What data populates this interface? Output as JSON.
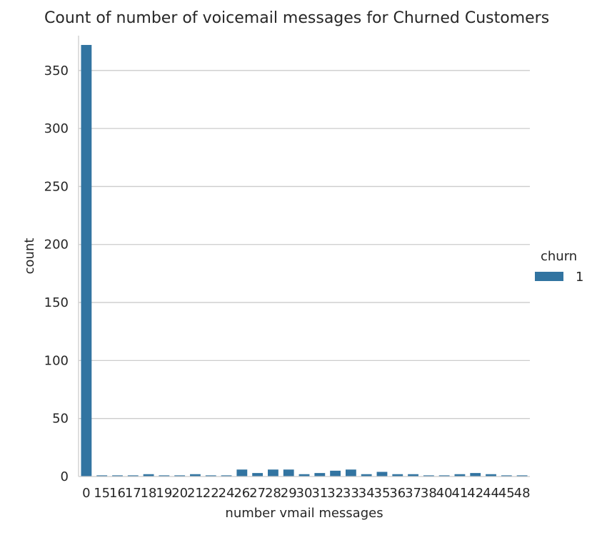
{
  "chart_data": {
    "type": "bar",
    "title": "Count of number of voicemail messages for Churned Customers",
    "xlabel": "number vmail messages",
    "ylabel": "count",
    "categories": [
      "0",
      "15",
      "16",
      "17",
      "18",
      "19",
      "20",
      "21",
      "22",
      "24",
      "26",
      "27",
      "28",
      "29",
      "30",
      "31",
      "32",
      "33",
      "34",
      "35",
      "36",
      "37",
      "38",
      "40",
      "41",
      "42",
      "44",
      "45",
      "48"
    ],
    "series": [
      {
        "name": "1",
        "color": "#3274a1",
        "values": [
          372,
          1,
          1,
          1,
          2,
          1,
          1,
          2,
          1,
          1,
          6,
          3,
          6,
          6,
          2,
          3,
          5,
          6,
          2,
          4,
          2,
          2,
          1,
          1,
          2,
          3,
          2,
          1,
          1
        ]
      }
    ],
    "ylim": [
      0,
      380
    ],
    "yticks": [
      0,
      50,
      100,
      150,
      200,
      250,
      300,
      350
    ],
    "grid": "y",
    "legend": {
      "title": "churn",
      "placement": "right"
    }
  }
}
